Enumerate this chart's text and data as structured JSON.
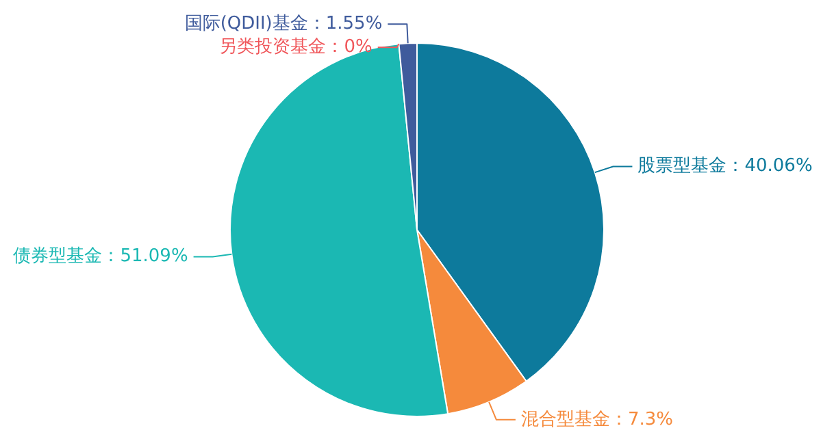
{
  "chart_data": {
    "type": "pie",
    "categories": [
      "股票型基金",
      "混合型基金",
      "债券型基金",
      "另类投资基金",
      "国际(QDII)基金"
    ],
    "values": [
      40.06,
      7.3,
      51.09,
      0,
      1.55
    ],
    "colors": [
      "#0d7a9c",
      "#f58a3c",
      "#1bb8b3",
      "#f0575b",
      "#3f5b9c"
    ],
    "value_labels": [
      "：40.06%",
      "：7.3%",
      "：51.09%",
      "：0%",
      "：1.55%"
    ],
    "legend": false
  }
}
